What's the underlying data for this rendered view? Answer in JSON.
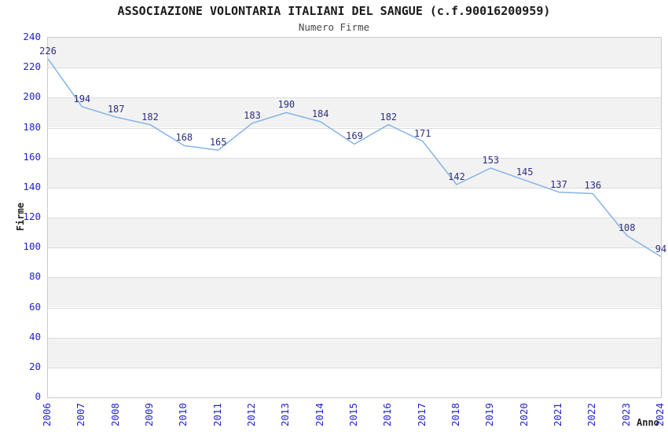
{
  "chart_data": {
    "type": "line",
    "title": "ASSOCIAZIONE VOLONTARIA ITALIANI DEL SANGUE (c.f.90016200959)",
    "subtitle": "Numero Firme",
    "xlabel": "Anno",
    "ylabel": "Firme",
    "x": [
      2006,
      2007,
      2008,
      2009,
      2010,
      2011,
      2012,
      2013,
      2014,
      2015,
      2016,
      2017,
      2018,
      2019,
      2020,
      2021,
      2022,
      2023,
      2024
    ],
    "values": [
      226,
      194,
      187,
      182,
      168,
      165,
      183,
      190,
      184,
      169,
      182,
      171,
      142,
      153,
      145,
      137,
      136,
      108,
      94
    ],
    "ylim": [
      0,
      240
    ],
    "ytick_step": 20,
    "grid": "horizontal-only",
    "alternating_bands": true,
    "legend": "none",
    "point_markers": false,
    "colors": {
      "line": "#85b3e6",
      "data_label": "#2d2d7f",
      "tick_label": "#2222cc",
      "band_fill": "#f2f2f2",
      "gridline": "#dcdcdc",
      "plot_border": "#c9c9c9",
      "title": "#1a1a1a",
      "subtitle": "#474747",
      "axis_title": "#222222"
    }
  }
}
